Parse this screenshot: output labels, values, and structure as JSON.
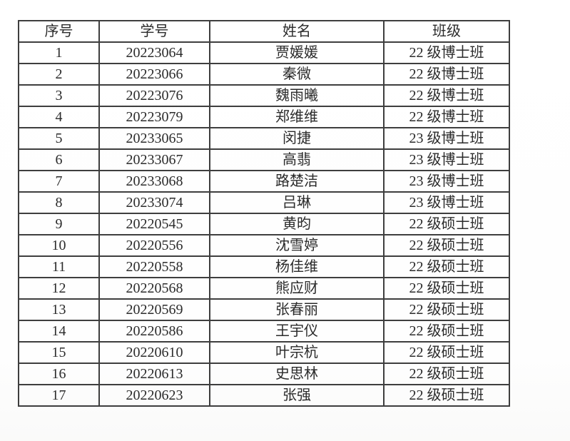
{
  "colors": {
    "border": "#3e3e3e",
    "text": "#2b2b2b",
    "background": "#ffffff"
  },
  "table": {
    "headers": [
      {
        "key": "no",
        "label": "序号"
      },
      {
        "key": "student_id",
        "label": "学号"
      },
      {
        "key": "name",
        "label": "姓名"
      },
      {
        "key": "class",
        "label": "班级"
      }
    ],
    "rows": [
      {
        "no": "1",
        "student_id": "20223064",
        "name": "贾媛媛",
        "class": "22 级博士班"
      },
      {
        "no": "2",
        "student_id": "20223066",
        "name": "秦微",
        "class": "22 级博士班"
      },
      {
        "no": "3",
        "student_id": "20223076",
        "name": "魏雨曦",
        "class": "22 级博士班"
      },
      {
        "no": "4",
        "student_id": "20223079",
        "name": "郑维维",
        "class": "22 级博士班"
      },
      {
        "no": "5",
        "student_id": "20233065",
        "name": "闵捷",
        "class": "23 级博士班"
      },
      {
        "no": "6",
        "student_id": "20233067",
        "name": "高翡",
        "class": "23 级博士班"
      },
      {
        "no": "7",
        "student_id": "20233068",
        "name": "路楚洁",
        "class": "23 级博士班"
      },
      {
        "no": "8",
        "student_id": "20233074",
        "name": "吕琳",
        "class": "23 级博士班"
      },
      {
        "no": "9",
        "student_id": "20220545",
        "name": "黄昀",
        "class": "22 级硕士班"
      },
      {
        "no": "10",
        "student_id": "20220556",
        "name": "沈雪婷",
        "class": "22 级硕士班"
      },
      {
        "no": "11",
        "student_id": "20220558",
        "name": "杨佳维",
        "class": "22 级硕士班"
      },
      {
        "no": "12",
        "student_id": "20220568",
        "name": "熊应财",
        "class": "22 级硕士班"
      },
      {
        "no": "13",
        "student_id": "20220569",
        "name": "张春丽",
        "class": "22 级硕士班"
      },
      {
        "no": "14",
        "student_id": "20220586",
        "name": "王宇仪",
        "class": "22 级硕士班"
      },
      {
        "no": "15",
        "student_id": "20220610",
        "name": "叶宗杭",
        "class": "22 级硕士班"
      },
      {
        "no": "16",
        "student_id": "20220613",
        "name": "史思林",
        "class": "22 级硕士班"
      },
      {
        "no": "17",
        "student_id": "20220623",
        "name": "张强",
        "class": "22 级硕士班"
      }
    ]
  }
}
